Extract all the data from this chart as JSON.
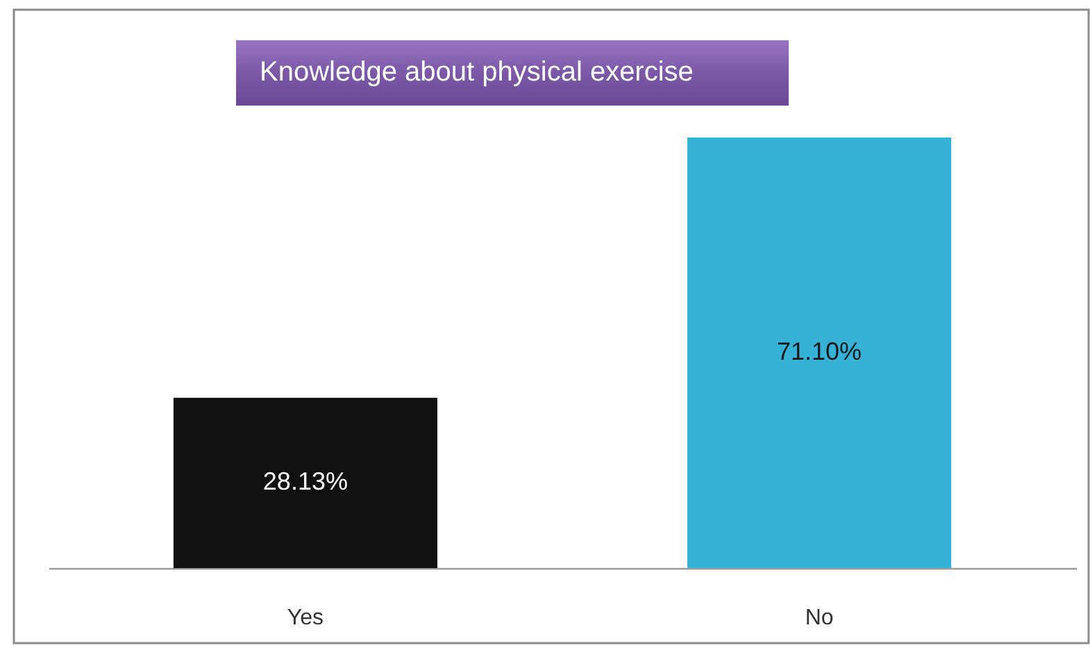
{
  "chart_data": {
    "type": "bar",
    "title": "Knowledge about physical exercise",
    "categories": [
      "Yes",
      "No"
    ],
    "values": [
      28.13,
      71.1
    ],
    "colors": [
      "#111111",
      "#37b2d6"
    ],
    "value_labels": [
      "28.13%",
      "71.10%"
    ],
    "tick_labels": "x"
  }
}
